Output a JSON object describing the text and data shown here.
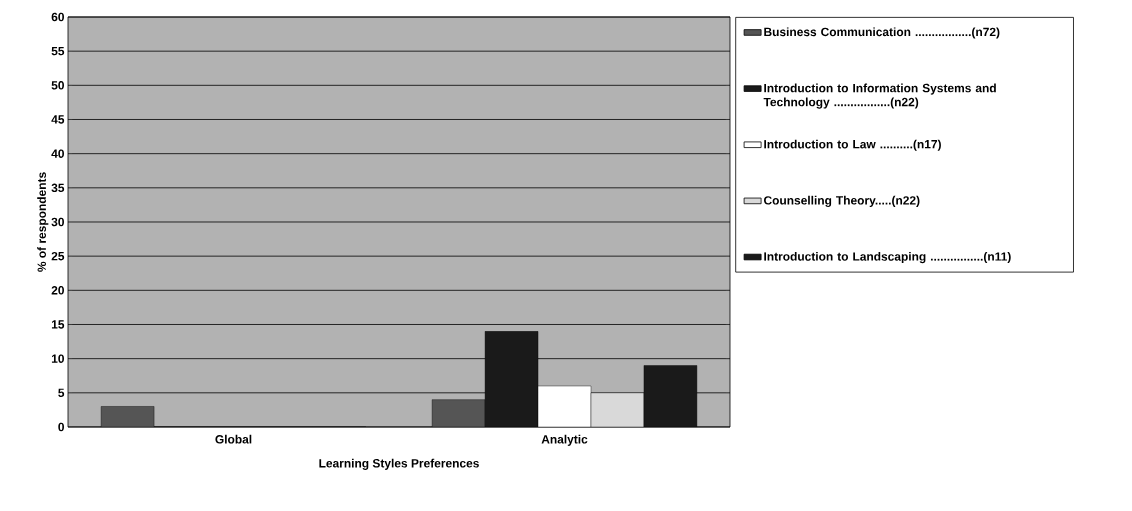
{
  "chart_data": {
    "type": "bar",
    "xlabel": "Learning Styles Preferences",
    "ylabel": "% of respondents",
    "categories": [
      "Global",
      "Analytic"
    ],
    "series": [
      {
        "name": "Business Communication .................(n72)",
        "color": "#555555",
        "values": [
          3,
          4
        ]
      },
      {
        "name": "Introduction to Information Systems and Technology .................(n22)",
        "color": "#1a1a1a",
        "values": [
          0,
          14
        ]
      },
      {
        "name": "Introduction to Law ..........(n17)",
        "color": "#ffffff",
        "values": [
          0,
          6
        ]
      },
      {
        "name": "Counselling Theory.....(n22)",
        "color": "#d9d9d9",
        "values": [
          0,
          5
        ]
      },
      {
        "name": "Introduction to Landscaping ................(n11)",
        "color": "#1a1a1a",
        "values": [
          0,
          9
        ]
      }
    ],
    "ylim": [
      0,
      60
    ],
    "yticks": [
      0,
      5,
      10,
      15,
      20,
      25,
      30,
      35,
      40,
      45,
      50,
      55,
      60
    ],
    "grid": "y",
    "legend": "right"
  }
}
